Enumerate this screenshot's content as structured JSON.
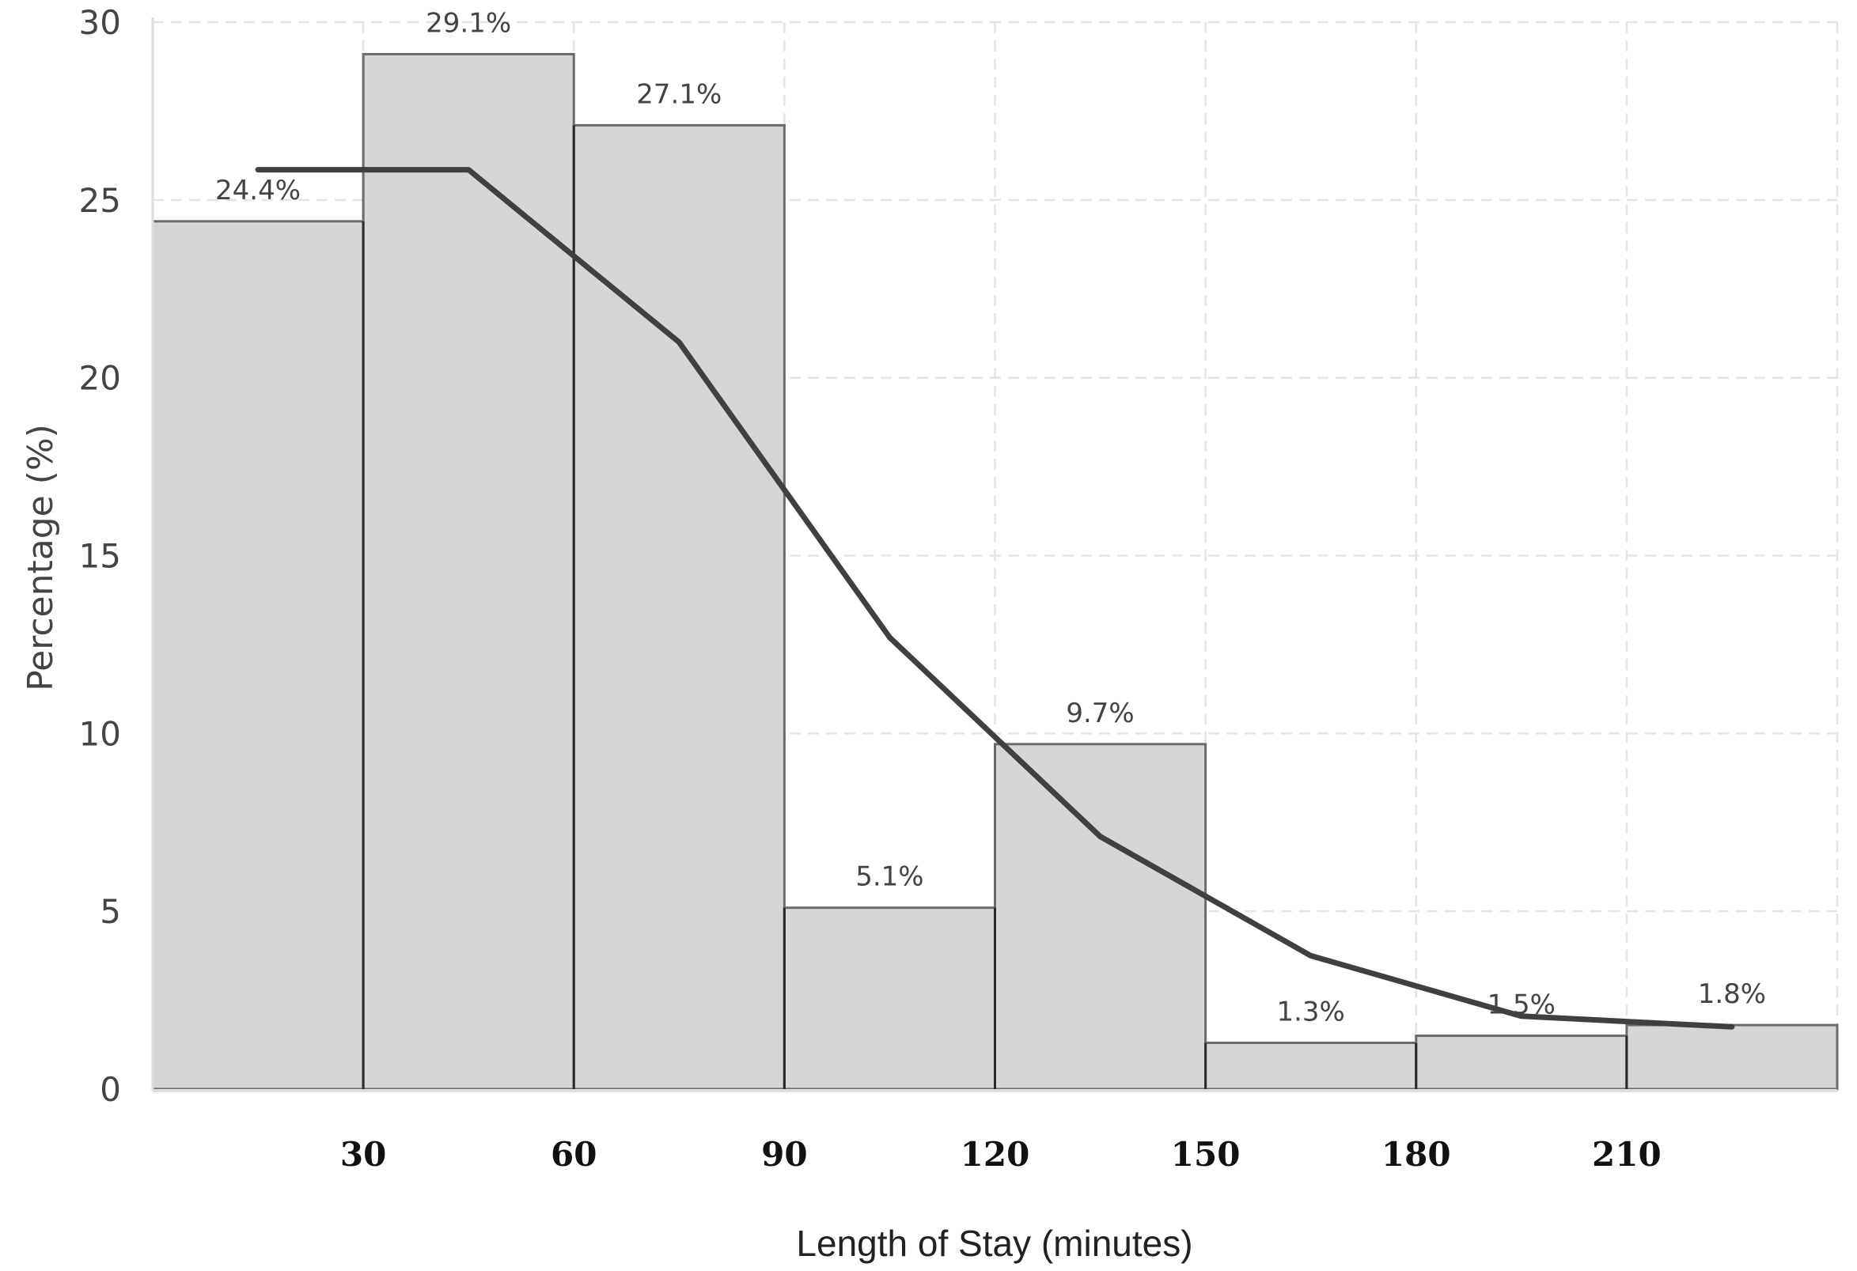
{
  "chart_data": {
    "type": "bar",
    "title": "",
    "xlabel": "Length of Stay (minutes)",
    "ylabel": "Percentage (%)",
    "ylim": [
      0,
      30
    ],
    "xlim": [
      0,
      240
    ],
    "yticks": [
      "0",
      "5",
      "10",
      "15",
      "20",
      "25",
      "30"
    ],
    "xticks": [
      {
        "value": 30,
        "label": "30"
      },
      {
        "value": 60,
        "label": "60"
      },
      {
        "value": 90,
        "label": "90"
      },
      {
        "value": 120,
        "label": "120"
      },
      {
        "value": 150,
        "label": "150"
      },
      {
        "value": 180,
        "label": "180"
      },
      {
        "value": 210,
        "label": "210"
      }
    ],
    "bins": [
      {
        "start": 0,
        "end": 30,
        "value": 24.4,
        "label": "24.4%"
      },
      {
        "start": 30,
        "end": 60,
        "value": 29.1,
        "label": "29.1%"
      },
      {
        "start": 60,
        "end": 90,
        "value": 27.1,
        "label": "27.1%"
      },
      {
        "start": 90,
        "end": 120,
        "value": 5.1,
        "label": "5.1%"
      },
      {
        "start": 120,
        "end": 150,
        "value": 9.7,
        "label": "9.7%"
      },
      {
        "start": 150,
        "end": 180,
        "value": 1.3,
        "label": "1.3%"
      },
      {
        "start": 180,
        "end": 210,
        "value": 1.5,
        "label": "1.5%"
      },
      {
        "start": 210,
        "end": 240,
        "value": 1.8,
        "label": "1.8%"
      }
    ],
    "smooth_line": {
      "x": [
        15,
        45,
        75,
        105,
        135,
        165,
        195,
        225
      ],
      "y": [
        25.85,
        25.85,
        21.0,
        12.7,
        7.1,
        3.75,
        2.05,
        1.75
      ]
    },
    "grid": true,
    "legend": "none",
    "colors": {
      "bar_fill": "#d6d6d6",
      "bar_edge": "#6b6b6b",
      "line": "#404040",
      "grid": "#e5e5e5",
      "axis": "#dddddd"
    }
  }
}
